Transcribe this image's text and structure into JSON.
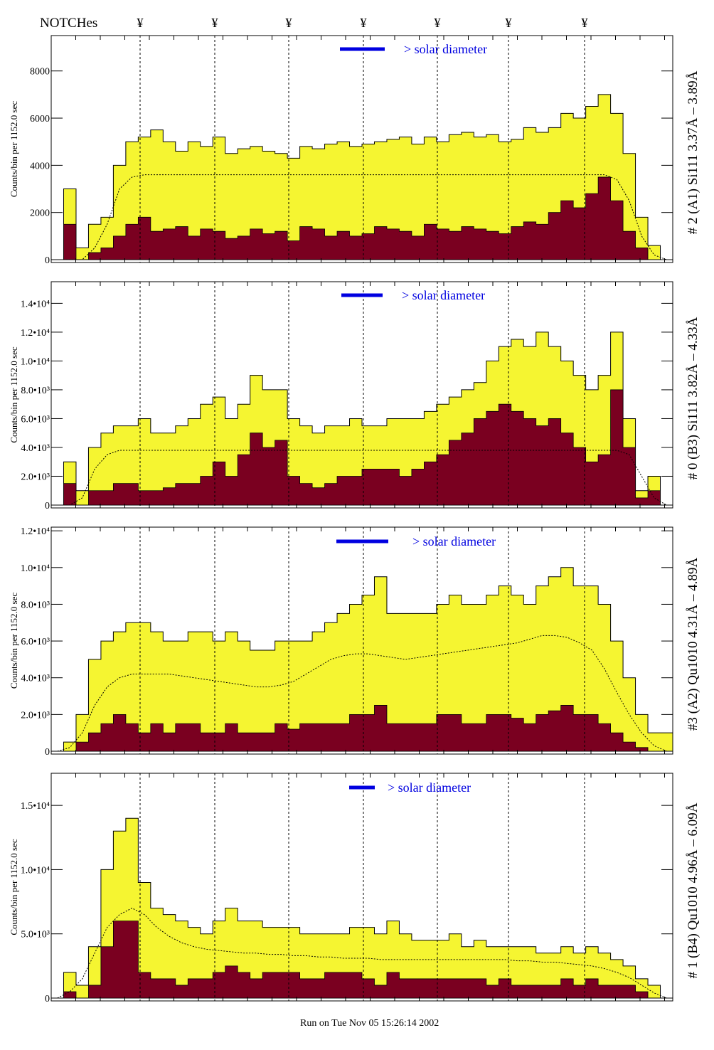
{
  "header": {
    "notches_label": "NOTCHes",
    "notch_symbol": "¥"
  },
  "footer": {
    "run_text": "Run on Tue Nov 05 15:26:14 2002"
  },
  "colors": {
    "total": "#f5f531",
    "component": "#7a0020",
    "solar_bar": "#0000e0",
    "model": "#000000"
  },
  "chart_data": [
    {
      "type": "histogram",
      "right_label": "# 2 (A1) Si111  3.37Å – 3.89Å",
      "ylabel": "Counts/bin per   1152.0 sec",
      "legend": "> solar diameter",
      "ylim": [
        0,
        9500
      ],
      "yticks": [
        0,
        2000,
        4000,
        6000,
        8000
      ],
      "yticklabels": [
        "0",
        "2000",
        "4000",
        "6000",
        "8000"
      ],
      "total": [
        0,
        3000,
        500,
        1500,
        1800,
        4000,
        5000,
        5200,
        5500,
        5000,
        4600,
        5000,
        4800,
        5200,
        4500,
        4700,
        4800,
        4600,
        4500,
        4300,
        4800,
        4700,
        4900,
        5000,
        4800,
        4900,
        5000,
        5100,
        5200,
        4900,
        5200,
        5000,
        5300,
        5400,
        5200,
        5300,
        5000,
        5100,
        5600,
        5400,
        5600,
        6200,
        6000,
        6500,
        7000,
        6200,
        4500,
        1800,
        600,
        0
      ],
      "component": [
        0,
        1500,
        0,
        300,
        500,
        1000,
        1500,
        1800,
        1200,
        1300,
        1400,
        1000,
        1300,
        1200,
        900,
        1000,
        1300,
        1100,
        1200,
        800,
        1400,
        1300,
        1000,
        1200,
        1000,
        1100,
        1400,
        1300,
        1200,
        1000,
        1500,
        1300,
        1200,
        1400,
        1300,
        1200,
        1100,
        1400,
        1600,
        1500,
        2000,
        2500,
        2200,
        2800,
        3500,
        2500,
        1200,
        500,
        0,
        0
      ],
      "model": [
        0,
        0,
        0,
        500,
        1500,
        3000,
        3500,
        3600,
        3600,
        3600,
        3600,
        3600,
        3600,
        3600,
        3600,
        3600,
        3600,
        3600,
        3600,
        3600,
        3600,
        3600,
        3600,
        3600,
        3600,
        3600,
        3600,
        3600,
        3600,
        3600,
        3600,
        3600,
        3600,
        3600,
        3600,
        3600,
        3600,
        3600,
        3600,
        3600,
        3600,
        3600,
        3600,
        3600,
        3600,
        3400,
        2500,
        1000,
        200,
        0
      ]
    },
    {
      "type": "histogram",
      "right_label": "# 0 (B3) Si111  3.82Å – 4.33Å",
      "ylabel": "Counts/bin per   1152.0 sec",
      "legend": "> solar diameter",
      "ylim": [
        0,
        15500
      ],
      "yticks": [
        2000,
        4000,
        6000,
        8000,
        10000,
        12000,
        14000
      ],
      "yticklabels": [
        "2.0•10³",
        "4.0•10³",
        "6.0•10³",
        "8.0•10³",
        "1.0•10⁴",
        "1.2•10⁴",
        "1.4•10⁴"
      ],
      "extra_ticklabels": [
        "0"
      ],
      "total": [
        0,
        3000,
        1000,
        4000,
        5000,
        5500,
        5500,
        6000,
        5000,
        5000,
        5500,
        6000,
        7000,
        7500,
        6000,
        7000,
        9000,
        8000,
        8000,
        6000,
        5500,
        5000,
        5500,
        5500,
        6000,
        5500,
        5500,
        6000,
        6000,
        6000,
        6500,
        7000,
        7500,
        8000,
        8500,
        10000,
        11000,
        11500,
        11000,
        12000,
        11000,
        10000,
        9000,
        8000,
        9000,
        12000,
        6000,
        1000,
        2000,
        0
      ],
      "component": [
        0,
        1500,
        0,
        1000,
        1000,
        1500,
        1500,
        1000,
        1000,
        1200,
        1500,
        1500,
        2000,
        3000,
        2000,
        3500,
        5000,
        4000,
        4500,
        2000,
        1500,
        1200,
        1500,
        2000,
        2000,
        2500,
        2500,
        2500,
        2000,
        2500,
        3000,
        3500,
        4500,
        5000,
        6000,
        6500,
        7000,
        6500,
        6000,
        5500,
        6000,
        5000,
        4000,
        3000,
        3500,
        8000,
        4000,
        500,
        1000,
        0
      ],
      "model": [
        0,
        0,
        500,
        2500,
        3500,
        3800,
        3800,
        3800,
        3800,
        3800,
        3800,
        3800,
        3800,
        3800,
        3800,
        3800,
        3800,
        3800,
        3800,
        3800,
        3800,
        3800,
        3800,
        3800,
        3800,
        3800,
        3800,
        3800,
        3800,
        3800,
        3800,
        3800,
        3800,
        3800,
        3800,
        3800,
        3800,
        3800,
        3800,
        3800,
        3800,
        3800,
        3800,
        3800,
        3800,
        3800,
        3500,
        2000,
        500,
        0
      ]
    },
    {
      "type": "histogram",
      "right_label": "#3 (A2) Qu1010  4.31Å – 4.89Å",
      "ylabel": "Counts/bin per   1152.0 sec",
      "legend": "> solar diameter",
      "ylim": [
        0,
        12200
      ],
      "yticks": [
        0,
        2000,
        4000,
        6000,
        8000,
        10000,
        12000
      ],
      "yticklabels": [
        "0",
        "2.0•10³",
        "4.0•10³",
        "6.0•10³",
        "8.0•10³",
        "1.0•10⁴",
        "1.2•10⁴"
      ],
      "total": [
        0,
        500,
        2000,
        5000,
        6000,
        6500,
        7000,
        7000,
        6500,
        6000,
        6000,
        6500,
        6500,
        6000,
        6500,
        6000,
        5500,
        5500,
        6000,
        6000,
        6000,
        6500,
        7000,
        7500,
        8000,
        8500,
        9500,
        7500,
        7500,
        7500,
        7500,
        8000,
        8500,
        8000,
        8000,
        8500,
        9000,
        8500,
        8000,
        9000,
        9500,
        10000,
        9000,
        9000,
        8000,
        6000,
        4000,
        2000,
        1000,
        1000
      ],
      "component": [
        0,
        0,
        500,
        1000,
        1500,
        2000,
        1500,
        1000,
        1500,
        1000,
        1500,
        1500,
        1000,
        1000,
        1500,
        1000,
        1000,
        1000,
        1500,
        1200,
        1500,
        1500,
        1500,
        1500,
        2000,
        2000,
        2500,
        1500,
        1500,
        1500,
        1500,
        2000,
        2000,
        1500,
        1500,
        2000,
        2000,
        1800,
        1500,
        2000,
        2200,
        2500,
        2000,
        2000,
        1500,
        1000,
        500,
        200,
        0,
        0
      ],
      "model": [
        0,
        200,
        1000,
        2500,
        3500,
        4000,
        4200,
        4200,
        4200,
        4200,
        4100,
        4000,
        3900,
        3800,
        3700,
        3600,
        3500,
        3500,
        3600,
        3800,
        4200,
        4600,
        5000,
        5200,
        5300,
        5300,
        5200,
        5100,
        5000,
        5100,
        5200,
        5300,
        5400,
        5500,
        5600,
        5700,
        5800,
        5900,
        6100,
        6300,
        6300,
        6200,
        5900,
        5500,
        4500,
        3200,
        2000,
        1000,
        300,
        0
      ]
    },
    {
      "type": "histogram",
      "right_label": "# 1 (B4) Qu1010 4.96Å – 6.09Å",
      "ylabel": "Counts/bin per   1152.0 sec",
      "legend": "> solar diameter",
      "ylim": [
        0,
        17500
      ],
      "yticks": [
        0,
        5000,
        10000,
        15000
      ],
      "yticklabels": [
        "0",
        "5.0•10³",
        "1.0•10⁴",
        "1.5•10⁴"
      ],
      "total": [
        0,
        2000,
        1000,
        4000,
        10000,
        13000,
        14000,
        9000,
        7000,
        6500,
        6000,
        5500,
        5000,
        6000,
        7000,
        6000,
        6000,
        5500,
        5500,
        5500,
        5000,
        5000,
        5000,
        5000,
        5500,
        5500,
        5000,
        6000,
        5000,
        4500,
        4500,
        4500,
        5000,
        4000,
        4500,
        4000,
        4000,
        4000,
        4000,
        3500,
        3500,
        4000,
        3500,
        4000,
        3500,
        3000,
        2500,
        1500,
        1000,
        0
      ],
      "component": [
        0,
        500,
        0,
        1000,
        4000,
        6000,
        6000,
        2000,
        1500,
        1500,
        1000,
        1500,
        1500,
        2000,
        2500,
        2000,
        1500,
        2000,
        2000,
        2000,
        1500,
        1500,
        2000,
        2000,
        2000,
        1500,
        1000,
        2000,
        1500,
        1500,
        1500,
        1500,
        1500,
        1500,
        1500,
        1000,
        1500,
        1000,
        1000,
        1000,
        1000,
        1500,
        1000,
        1500,
        1000,
        1000,
        1000,
        500,
        0,
        0
      ],
      "model": [
        0,
        500,
        1500,
        3500,
        5500,
        6500,
        7000,
        6500,
        5500,
        4800,
        4300,
        4000,
        3800,
        3700,
        3600,
        3500,
        3500,
        3400,
        3400,
        3300,
        3300,
        3200,
        3200,
        3100,
        3100,
        3100,
        3000,
        3000,
        3000,
        3000,
        3000,
        3000,
        3000,
        3000,
        3000,
        3000,
        3000,
        2900,
        2900,
        2800,
        2800,
        2700,
        2600,
        2500,
        2300,
        2000,
        1600,
        1000,
        400,
        0
      ]
    }
  ]
}
